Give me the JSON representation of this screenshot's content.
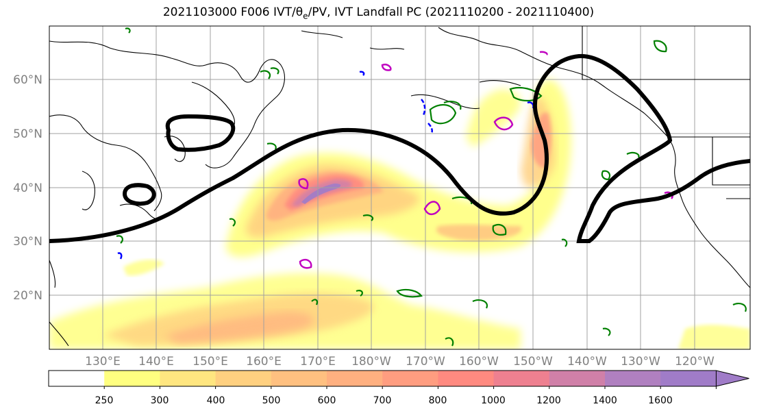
{
  "title": {
    "prefix": "2021103000 F006 IVT/",
    "theta": "θ",
    "sub": "e",
    "suffix": "/PV, IVT Landfall PC (2021110200 - 2021110400)"
  },
  "map": {
    "lat_labels": [
      "60°N",
      "50°N",
      "40°N",
      "30°N",
      "20°N"
    ],
    "lon_labels": [
      "130°E",
      "140°E",
      "150°E",
      "160°E",
      "170°E",
      "180°W",
      "170°W",
      "160°W",
      "150°W",
      "140°W",
      "130°W",
      "120°W"
    ],
    "contour_colors": {
      "landfall_pc": "#000000",
      "theta_e": "#008000",
      "pv_positive": "#c000c0",
      "pv_negative": "#0000ff",
      "coastline": "#000000"
    }
  },
  "colorbar": {
    "levels": [
      "250",
      "300",
      "400",
      "500",
      "600",
      "700",
      "800",
      "1000",
      "1200",
      "1400",
      "1600"
    ],
    "colors": [
      "#ffffff",
      "#ffff80",
      "#ffe680",
      "#ffd080",
      "#ffc080",
      "#ffb080",
      "#ff9d80",
      "#ff8a80",
      "#ee8090",
      "#d080a8",
      "#b080c0",
      "#a07cc8"
    ]
  }
}
